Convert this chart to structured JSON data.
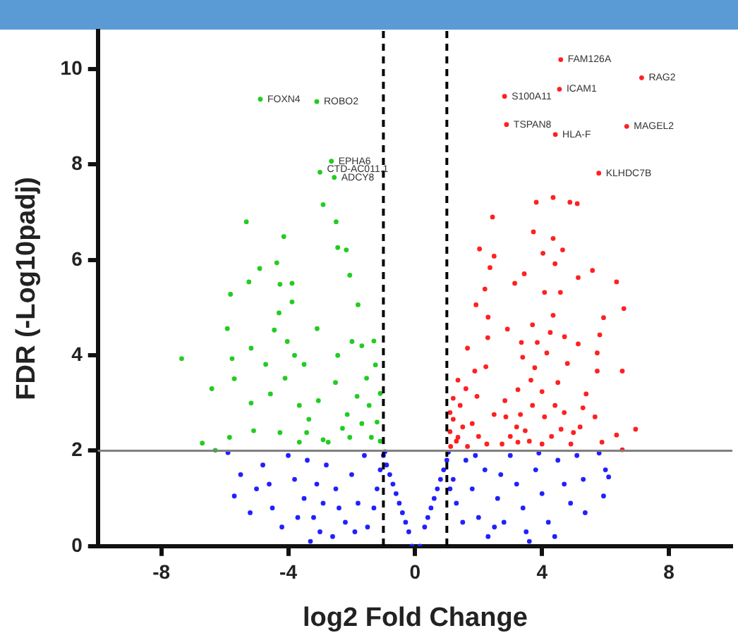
{
  "chart_data": {
    "type": "scatter",
    "xlabel": "log2 Fold Change",
    "ylabel": "FDR (-Log10padj)",
    "xlim": [
      -10,
      10
    ],
    "xticks": [
      -8,
      -4,
      0,
      4,
      8
    ],
    "ylim": [
      0,
      10.8
    ],
    "yticks": [
      0,
      2,
      4,
      6,
      8,
      10
    ],
    "grid": false,
    "legend": false,
    "marker": "circle",
    "ref_lines": [
      {
        "axis": "x",
        "value": -1,
        "color": "#000000",
        "line_style": "dashed"
      },
      {
        "axis": "x",
        "value": 1,
        "color": "#000000",
        "line_style": "dashed"
      },
      {
        "axis": "y",
        "value": 2,
        "color": "#808080",
        "line_style": "solid"
      }
    ],
    "annotations": [
      {
        "text": "FOXN4",
        "x": -4.88,
        "y": 9.37
      },
      {
        "text": "ROBO2",
        "x": -3.1,
        "y": 9.32
      },
      {
        "text": "EPHA6",
        "x": -2.64,
        "y": 8.07
      },
      {
        "text": "CTD-AC011.1",
        "x": -3.0,
        "y": 7.84
      },
      {
        "text": "ADCY8",
        "x": -2.55,
        "y": 7.73
      },
      {
        "text": "FAM126A",
        "x": 4.59,
        "y": 10.2
      },
      {
        "text": "RAG2",
        "x": 7.14,
        "y": 9.82
      },
      {
        "text": "ICAM1",
        "x": 4.55,
        "y": 9.58
      },
      {
        "text": "S100A11",
        "x": 2.82,
        "y": 9.43
      },
      {
        "text": "TSPAN8",
        "x": 2.88,
        "y": 8.84
      },
      {
        "text": "HLA-F",
        "x": 4.42,
        "y": 8.63
      },
      {
        "text": "MAGEL2",
        "x": 6.67,
        "y": 8.8
      },
      {
        "text": "KLHDC7B",
        "x": 5.79,
        "y": 7.82
      }
    ],
    "series": [
      {
        "color": "#2020ff",
        "x": [
          -0.1,
          -0.2,
          -0.3,
          -0.4,
          -0.5,
          -0.6,
          -0.7,
          -0.8,
          -0.9,
          -1.0,
          -0.95,
          0.15,
          0.3,
          0.4,
          0.5,
          0.6,
          0.7,
          0.8,
          0.9,
          1.0,
          1.05,
          -1.1,
          -1.2,
          -1.3,
          -1.5,
          1.2,
          1.3,
          1.5,
          1.1,
          -5.9,
          -5.5,
          -5.7,
          -5.0,
          -4.5,
          -4.0,
          -3.8,
          -3.5,
          -3.2,
          -3.0,
          -2.8,
          -2.5,
          -2.2,
          -2.0,
          -1.8,
          -4.8,
          -4.2,
          -3.4,
          -2.6,
          -1.6,
          -2.4,
          -4.6,
          -3.7,
          -5.2,
          -3.1,
          -2.9,
          -1.9,
          -3.3,
          1.6,
          1.8,
          2.0,
          2.3,
          2.2,
          2.6,
          2.8,
          3.0,
          3.2,
          3.4,
          3.5,
          3.8,
          4.0,
          4.2,
          4.5,
          4.7,
          4.9,
          5.1,
          5.3,
          5.36,
          6.0,
          5.94,
          6.1,
          3.6,
          2.7,
          4.4,
          3.9,
          5.8,
          1.9,
          2.5
        ],
        "values": [
          0.0,
          0.3,
          0.5,
          0.7,
          0.9,
          1.1,
          1.3,
          1.5,
          1.7,
          1.9,
          1.98,
          0.0,
          0.4,
          0.6,
          0.8,
          1.0,
          1.2,
          1.4,
          1.6,
          1.8,
          1.97,
          1.6,
          1.2,
          0.8,
          0.4,
          1.4,
          0.9,
          0.5,
          1.2,
          1.96,
          1.5,
          1.05,
          1.2,
          0.8,
          1.9,
          1.4,
          1.0,
          0.6,
          0.3,
          1.7,
          1.2,
          0.5,
          1.5,
          0.9,
          1.7,
          0.4,
          1.8,
          0.2,
          1.9,
          0.8,
          1.3,
          0.6,
          0.7,
          1.3,
          0.9,
          0.3,
          0.1,
          1.8,
          1.2,
          0.6,
          0.2,
          1.6,
          1.0,
          0.5,
          1.9,
          1.3,
          0.8,
          0.3,
          1.6,
          1.1,
          0.5,
          1.8,
          1.3,
          0.9,
          1.9,
          1.4,
          0.7,
          1.6,
          1.05,
          1.45,
          0.1,
          1.5,
          0.2,
          1.95,
          1.95,
          1.9,
          0.4
        ]
      },
      {
        "color": "#22cc22",
        "x": [
          -7.36,
          -5.32,
          -4.14,
          -2.9,
          -2.49,
          -2.44,
          -2.17,
          -4.36,
          -4.9,
          -5.24,
          -5.82,
          -4.26,
          -3.88,
          -3.88,
          -4.29,
          -2.06,
          -1.8,
          -5.92,
          -3.09,
          -4.44,
          -5.17,
          -5.77,
          -6.41,
          -5.7,
          -4.71,
          -4.03,
          -3.8,
          -4.1,
          -3.5,
          -5.17,
          -4.56,
          -3.65,
          -3.35,
          -3.05,
          -5.09,
          -4.26,
          -6.71,
          -6.3,
          -5.85,
          -3.42,
          -3.65,
          -2.9,
          -2.14,
          -1.99,
          -1.68,
          -1.53,
          -1.83,
          -1.45,
          -1.68,
          -1.38,
          -2.06,
          -2.44,
          -2.51,
          -2.29,
          -2.74,
          -1.2,
          -1.1,
          -1.25,
          -1.1,
          -1.3,
          -4.88,
          -3.1,
          -2.64,
          -3.0,
          -2.55
        ],
        "values": [
          3.93,
          6.8,
          6.49,
          7.16,
          6.8,
          6.26,
          6.21,
          5.94,
          5.82,
          5.54,
          5.28,
          5.49,
          5.51,
          5.12,
          4.89,
          5.68,
          5.06,
          4.56,
          4.56,
          4.53,
          4.15,
          3.93,
          3.3,
          3.51,
          3.81,
          4.29,
          4.0,
          3.52,
          3.81,
          3.0,
          3.19,
          2.95,
          2.66,
          3.05,
          2.42,
          2.38,
          2.16,
          2.01,
          2.28,
          2.38,
          2.18,
          2.23,
          2.76,
          4.29,
          4.2,
          3.52,
          3.14,
          2.95,
          2.57,
          2.28,
          2.28,
          4.0,
          3.43,
          2.47,
          2.18,
          2.6,
          3.2,
          3.8,
          2.2,
          4.3,
          9.37,
          9.32,
          8.07,
          7.84,
          7.73
        ]
      },
      {
        "color": "#ff2020",
        "x": [
          3.82,
          4.35,
          4.88,
          5.11,
          2.44,
          3.73,
          4.35,
          2.03,
          2.49,
          2.36,
          4.03,
          4.65,
          4.41,
          5.59,
          5.14,
          6.35,
          3.44,
          3.14,
          2.2,
          1.92,
          4.08,
          4.58,
          4.35,
          6.58,
          5.94,
          2.3,
          2.91,
          3.7,
          4.26,
          3.35,
          3.85,
          4.71,
          5.14,
          5.82,
          1.65,
          2.29,
          3.39,
          4.15,
          4.8,
          5.74,
          5.74,
          6.53,
          1.88,
          2.23,
          3.77,
          4.5,
          3.65,
          1.35,
          3.24,
          4.0,
          2.83,
          5.39,
          1.95,
          1.42,
          3.7,
          4.41,
          5.29,
          2.49,
          2.86,
          3.32,
          4.08,
          5.67,
          1.2,
          1.8,
          6.95,
          6.35,
          4.6,
          3.47,
          4.99,
          1.35,
          2.26,
          2.74,
          3.24,
          4.0,
          4.91,
          5.89,
          1.12,
          1.65,
          6.53,
          1.1,
          1.2,
          1.3,
          1.5,
          1.1,
          1.6,
          2.0,
          3.0,
          3.6,
          4.3,
          5.2,
          4.7,
          3.2,
          4.59,
          7.14,
          4.55,
          2.82,
          2.88,
          4.42,
          6.67,
          5.79
        ],
        "values": [
          7.21,
          7.31,
          7.21,
          7.18,
          6.9,
          6.59,
          6.45,
          6.23,
          6.08,
          5.84,
          6.14,
          6.21,
          5.92,
          5.78,
          5.63,
          5.54,
          5.71,
          5.51,
          5.39,
          5.06,
          5.32,
          5.32,
          4.84,
          4.98,
          4.79,
          4.8,
          4.55,
          4.64,
          4.48,
          4.27,
          4.27,
          4.39,
          4.24,
          4.43,
          4.15,
          4.37,
          3.96,
          4.05,
          3.83,
          4.05,
          3.67,
          3.67,
          3.67,
          3.76,
          3.74,
          3.43,
          3.48,
          3.48,
          3.28,
          3.24,
          3.05,
          3.19,
          3.14,
          2.95,
          2.95,
          2.95,
          2.9,
          2.76,
          2.71,
          2.76,
          2.71,
          2.71,
          2.66,
          2.57,
          2.45,
          2.33,
          2.45,
          2.42,
          2.38,
          2.28,
          2.14,
          2.14,
          2.18,
          2.14,
          2.14,
          2.18,
          2.09,
          2.09,
          2.02,
          2.4,
          3.1,
          2.2,
          2.5,
          2.8,
          3.3,
          2.3,
          2.3,
          2.2,
          2.3,
          2.5,
          2.8,
          2.5,
          10.2,
          9.82,
          9.58,
          9.43,
          8.84,
          8.63,
          8.8,
          7.82
        ]
      }
    ]
  }
}
